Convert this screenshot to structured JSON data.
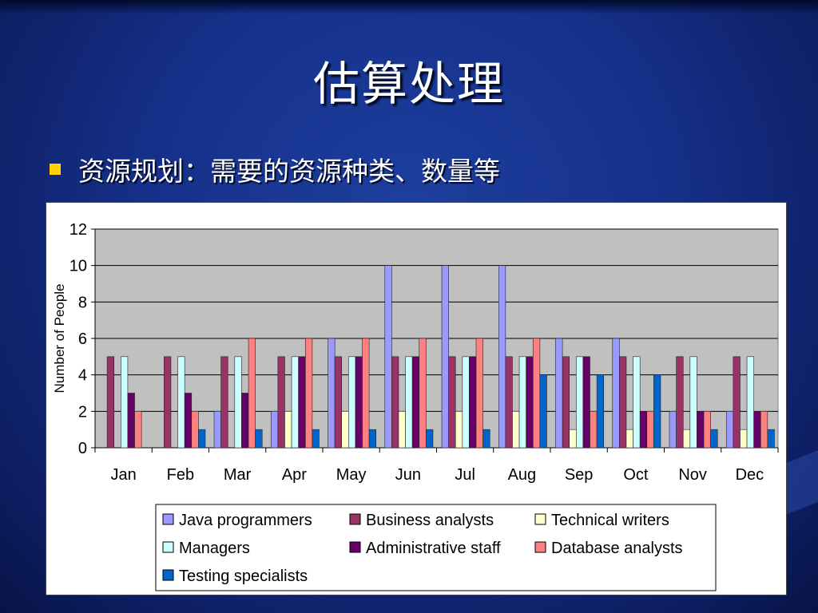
{
  "slide": {
    "title": "估算处理",
    "bullet": "资源规划：需要的资源种类、数量等"
  },
  "colors": {
    "background": "#16308a",
    "bullet": "#ffd200",
    "plot_area": "#c0c0c0"
  },
  "chart_data": {
    "type": "bar",
    "title": "",
    "xlabel": "",
    "ylabel": "Number of People",
    "ylim": [
      0,
      12
    ],
    "yticks": [
      0,
      2,
      4,
      6,
      8,
      10,
      12
    ],
    "grid": true,
    "legend_position": "bottom",
    "categories": [
      "Jan",
      "Feb",
      "Mar",
      "Apr",
      "May",
      "Jun",
      "Jul",
      "Aug",
      "Sep",
      "Oct",
      "Nov",
      "Dec"
    ],
    "series": [
      {
        "name": "Java programmers",
        "color": "#9999ff",
        "values": [
          0,
          0,
          2,
          2,
          6,
          10,
          10,
          10,
          6,
          6,
          2,
          2
        ]
      },
      {
        "name": "Business analysts",
        "color": "#993366",
        "values": [
          5,
          5,
          5,
          5,
          5,
          5,
          5,
          5,
          5,
          5,
          5,
          5
        ]
      },
      {
        "name": "Technical writers",
        "color": "#ffffcc",
        "values": [
          0,
          0,
          0,
          2,
          2,
          2,
          2,
          2,
          1,
          1,
          1,
          1
        ]
      },
      {
        "name": "Managers",
        "color": "#ccffff",
        "values": [
          5,
          5,
          5,
          5,
          5,
          5,
          5,
          5,
          5,
          5,
          5,
          5
        ]
      },
      {
        "name": "Administrative staff",
        "color": "#660066",
        "values": [
          3,
          3,
          3,
          5,
          5,
          5,
          5,
          5,
          5,
          2,
          2,
          2
        ]
      },
      {
        "name": "Database analysts",
        "color": "#ff8080",
        "values": [
          2,
          2,
          6,
          6,
          6,
          6,
          6,
          6,
          2,
          2,
          2,
          2
        ]
      },
      {
        "name": "Testing specialists",
        "color": "#0066cc",
        "values": [
          0,
          1,
          1,
          1,
          1,
          1,
          1,
          4,
          4,
          4,
          1,
          1
        ]
      }
    ]
  }
}
